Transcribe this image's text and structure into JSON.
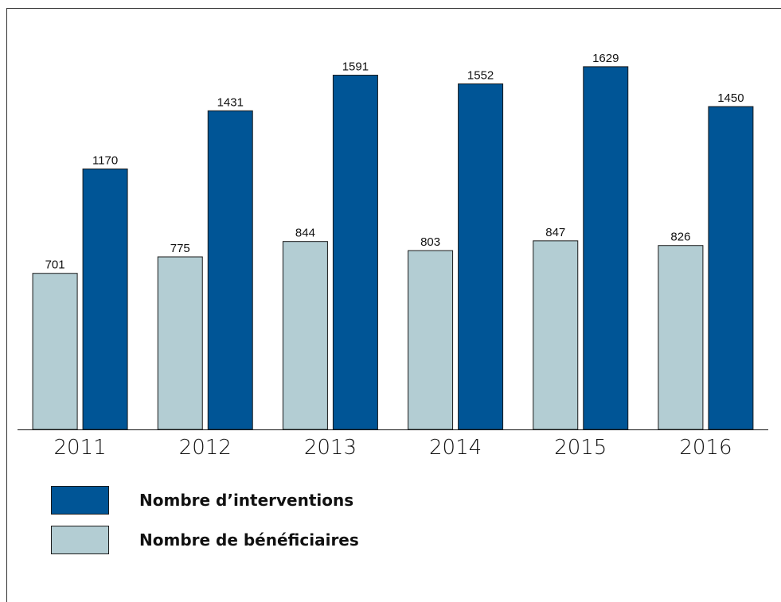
{
  "chart_data": {
    "type": "bar",
    "categories": [
      "2011",
      "2012",
      "2013",
      "2014",
      "2015",
      "2016"
    ],
    "series": [
      {
        "name": "Nombre de bénéficiaires",
        "color": "#b3cdd3",
        "values": [
          701,
          775,
          844,
          803,
          847,
          826
        ]
      },
      {
        "name": "Nombre d’interventions",
        "color": "#005596",
        "values": [
          1170,
          1431,
          1591,
          1552,
          1629,
          1450
        ]
      }
    ],
    "ylim": [
      0,
      1900
    ]
  }
}
